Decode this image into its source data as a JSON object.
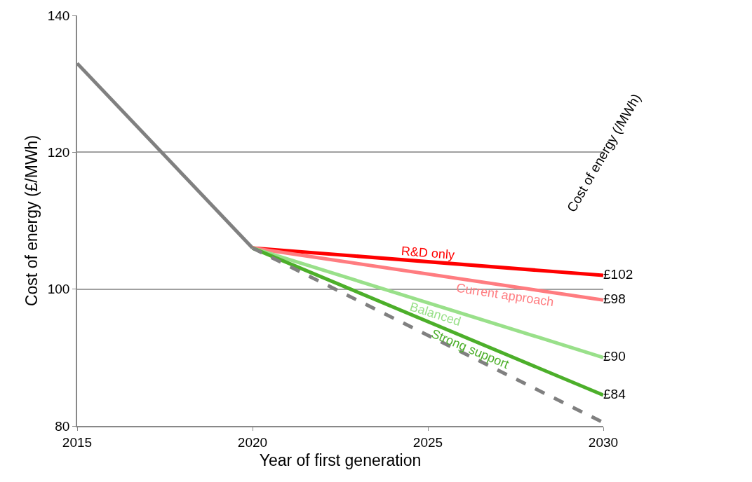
{
  "chart_data": {
    "type": "line",
    "xlabel": "Year of first generation",
    "ylabel": "Cost of energy (£/MWh)",
    "xlim": [
      2015,
      2030
    ],
    "xticks": [
      2015,
      2020,
      2025,
      2030
    ],
    "ylim": [
      80,
      140
    ],
    "yticks": [
      80,
      100,
      120,
      140
    ],
    "grid": "y",
    "legend": false,
    "annotations": [
      "Cost of energy (/MWh)"
    ],
    "series": [
      {
        "color": "#808080",
        "x": [
          2015,
          2020
        ],
        "values": [
          133,
          106
        ],
        "line_style": "solid"
      },
      {
        "name": "R&D only",
        "color": "#ff0000",
        "x": [
          2020,
          2030
        ],
        "values": [
          106,
          102
        ],
        "value_labels": [
          null,
          "£102"
        ],
        "line_style": "solid"
      },
      {
        "name": "Current approach",
        "color": "#ff7c80",
        "x": [
          2020,
          2030
        ],
        "values": [
          106,
          98.4
        ],
        "value_labels": [
          null,
          "£98"
        ],
        "line_style": "solid"
      },
      {
        "name": "Balanced",
        "color": "#99e08a",
        "x": [
          2020,
          2030
        ],
        "values": [
          106,
          90
        ],
        "value_labels": [
          null,
          "£90"
        ],
        "line_style": "solid"
      },
      {
        "name": "Strong support",
        "color": "#4caf2a",
        "x": [
          2020,
          2030
        ],
        "values": [
          106,
          84.5
        ],
        "value_labels": [
          null,
          "£84"
        ],
        "line_style": "solid"
      },
      {
        "color": "#808080",
        "x": [
          2020,
          2030
        ],
        "values": [
          106,
          80.5
        ],
        "line_style": "dashed"
      }
    ]
  }
}
